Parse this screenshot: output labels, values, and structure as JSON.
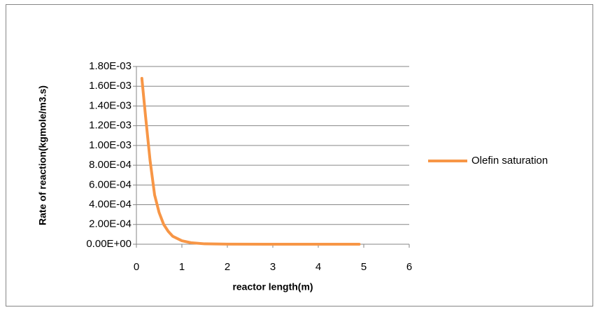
{
  "chart_data": {
    "type": "line",
    "x_label": "reactor length(m)",
    "y_label": "Rate of reaction(kgmole/m3.s)",
    "x": [
      0.12,
      0.2,
      0.3,
      0.4,
      0.5,
      0.6,
      0.7,
      0.8,
      1.0,
      1.2,
      1.5,
      2.0,
      3.0,
      4.0,
      4.9
    ],
    "series": [
      {
        "name": "Olefin saturation",
        "color": "#f79646",
        "values": [
          0.00168,
          0.0013,
          0.00085,
          0.0005,
          0.00032,
          0.0002,
          0.00013,
          8e-05,
          3.5e-05,
          1.5e-05,
          4e-06,
          5e-07,
          0,
          0,
          0
        ]
      }
    ],
    "xlim": [
      0,
      6
    ],
    "xticks": [
      0,
      1,
      2,
      3,
      4,
      5,
      6
    ],
    "ylim": [
      0,
      0.0018
    ],
    "yticks": [
      {
        "value": 0,
        "label": "0.00E+00"
      },
      {
        "value": 0.0002,
        "label": "2.00E-04"
      },
      {
        "value": 0.0004,
        "label": "4.00E-04"
      },
      {
        "value": 0.0006,
        "label": "6.00E-04"
      },
      {
        "value": 0.0008,
        "label": "8.00E-04"
      },
      {
        "value": 0.001,
        "label": "1.00E-03"
      },
      {
        "value": 0.0012,
        "label": "1.20E-03"
      },
      {
        "value": 0.0014,
        "label": "1.40E-03"
      },
      {
        "value": 0.0016,
        "label": "1.60E-03"
      },
      {
        "value": 0.0018,
        "label": "1.80E-03"
      }
    ],
    "grid": true,
    "legend": "right"
  }
}
